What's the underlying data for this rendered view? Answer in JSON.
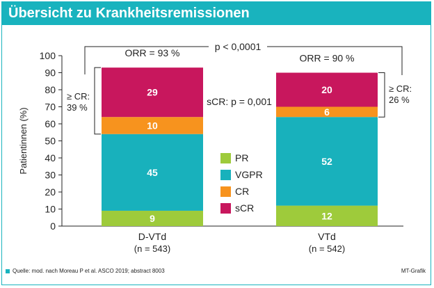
{
  "header": {
    "title": "Übersicht zu Krankheitsremissionen"
  },
  "chart_data": {
    "type": "bar",
    "stacked": true,
    "ylabel": "Patientinnen (%)",
    "ylim": [
      0,
      100
    ],
    "yticks": [
      0,
      10,
      20,
      30,
      40,
      50,
      60,
      70,
      80,
      90,
      100
    ],
    "categories": [
      {
        "name": "D-VTd",
        "n": "(n = 543)",
        "orr": "ORR = 93 %",
        "cr_label": "≥ CR:",
        "cr_value": "39 %"
      },
      {
        "name": "VTd",
        "n": "(n = 542)",
        "orr": "ORR = 90 %",
        "cr_label": "≥ CR:",
        "cr_value": "26 %"
      }
    ],
    "series": [
      {
        "name": "PR",
        "color": "#9ecb3b",
        "values": [
          9,
          12
        ]
      },
      {
        "name": "VGPR",
        "color": "#18b1bc",
        "values": [
          45,
          52
        ]
      },
      {
        "name": "CR",
        "color": "#f7931e",
        "values": [
          10,
          6
        ]
      },
      {
        "name": "sCR",
        "color": "#c8175d",
        "values": [
          29,
          20
        ]
      }
    ],
    "annotations": {
      "p_orr": "p < 0,0001",
      "p_scr": "sCR: p = 0,001"
    },
    "legend": "center"
  },
  "footer": {
    "source": "Quelle: mod. nach Moreau P et al. ASCO 2019; abstract 8003",
    "credit": "MT-Grafik"
  }
}
